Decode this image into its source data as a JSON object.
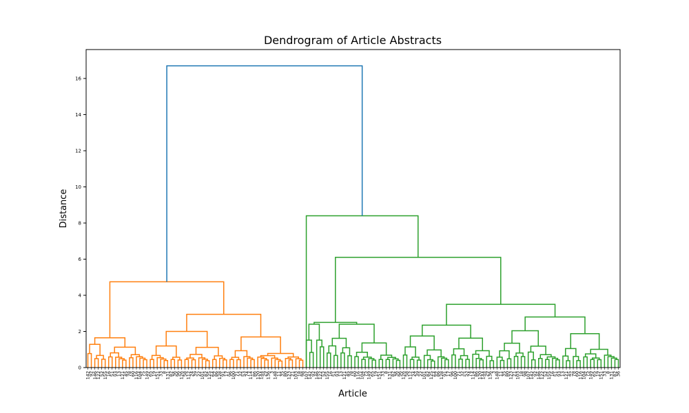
{
  "chart_data": {
    "type": "dendrogram",
    "title": "Dendrogram of Article Abstracts",
    "xlabel": "Article",
    "ylabel": "Distance",
    "ylim": [
      0,
      17.6
    ],
    "yticks": [
      0,
      2,
      4,
      6,
      8,
      10,
      12,
      14,
      16
    ],
    "grid": false,
    "colors": {
      "link_root": "#1f77b4",
      "cluster_1": "#ff7f0e",
      "cluster_2": "#2ca02c",
      "axes": "#000000"
    },
    "leaf_count_cluster_1": 63,
    "leaf_count_cluster_2": 91,
    "leaf_labels": [
      "142",
      "92",
      "146",
      "122",
      "52",
      "155",
      "16",
      "51",
      "93",
      "13",
      "121",
      "45",
      "78",
      "60",
      "116",
      "104",
      "75",
      "149",
      "65",
      "19",
      "151",
      "33",
      "8",
      "131",
      "82",
      "36",
      "96",
      "126",
      "58",
      "112",
      "24",
      "39",
      "22",
      "101",
      "82",
      "125",
      "64",
      "86",
      "128",
      "91",
      "17",
      "96",
      "100",
      "71",
      "32",
      "53",
      "74",
      "114",
      "86",
      "120",
      "144",
      "29",
      "136",
      "3",
      "148",
      "11",
      "35",
      "80",
      "123",
      "21",
      "103",
      "18",
      "98",
      "107"
    ],
    "merge_heights": {
      "root": 16.7,
      "cluster_1_top": 4.75,
      "cluster_2_top": 8.4,
      "cluster_2_right": 6.1,
      "cluster_2_right_sub": 3.5,
      "cluster_1_right": 2.95,
      "cluster_1_left": 1.65
    }
  }
}
